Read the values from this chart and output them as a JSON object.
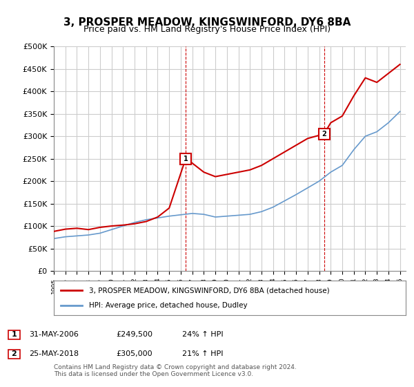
{
  "title": "3, PROSPER MEADOW, KINGSWINFORD, DY6 8BA",
  "subtitle": "Price paid vs. HM Land Registry's House Price Index (HPI)",
  "xlabel": "",
  "ylabel": "",
  "ylim": [
    0,
    500000
  ],
  "yticks": [
    0,
    50000,
    100000,
    150000,
    200000,
    250000,
    300000,
    350000,
    400000,
    450000,
    500000
  ],
  "ytick_labels": [
    "£0",
    "£50K",
    "£100K",
    "£150K",
    "£200K",
    "£250K",
    "£300K",
    "£350K",
    "£400K",
    "£450K",
    "£500K"
  ],
  "background_color": "#ffffff",
  "grid_color": "#cccccc",
  "red_color": "#cc0000",
  "blue_color": "#6699cc",
  "marker1_x": 2006.42,
  "marker1_y": 249500,
  "marker1_label": "1",
  "marker2_x": 2018.42,
  "marker2_y": 305000,
  "marker2_label": "2",
  "vline1_x": 2006.42,
  "vline2_x": 2018.42,
  "legend_entry1": "3, PROSPER MEADOW, KINGSWINFORD, DY6 8BA (detached house)",
  "legend_entry2": "HPI: Average price, detached house, Dudley",
  "table_row1": [
    "1",
    "31-MAY-2006",
    "£249,500",
    "24% ↑ HPI"
  ],
  "table_row2": [
    "2",
    "25-MAY-2018",
    "£305,000",
    "21% ↑ HPI"
  ],
  "footnote": "Contains HM Land Registry data © Crown copyright and database right 2024.\nThis data is licensed under the Open Government Licence v3.0.",
  "red_line": {
    "years": [
      1995,
      1996,
      1997,
      1998,
      1999,
      2000,
      2001,
      2002,
      2003,
      2004,
      2005,
      2006.42,
      2007,
      2008,
      2009,
      2010,
      2011,
      2012,
      2013,
      2014,
      2015,
      2016,
      2017,
      2018.42,
      2019,
      2020,
      2021,
      2022,
      2023,
      2024,
      2025
    ],
    "values": [
      88000,
      93000,
      95000,
      92000,
      97000,
      100000,
      102000,
      105000,
      110000,
      120000,
      140000,
      249500,
      240000,
      220000,
      210000,
      215000,
      220000,
      225000,
      235000,
      250000,
      265000,
      280000,
      295000,
      305000,
      330000,
      345000,
      390000,
      430000,
      420000,
      440000,
      460000
    ]
  },
  "blue_line": {
    "years": [
      1995,
      1996,
      1997,
      1998,
      1999,
      2000,
      2001,
      2002,
      2003,
      2004,
      2005,
      2006,
      2007,
      2008,
      2009,
      2010,
      2011,
      2012,
      2013,
      2014,
      2015,
      2016,
      2017,
      2018,
      2019,
      2020,
      2021,
      2022,
      2023,
      2024,
      2025
    ],
    "values": [
      72000,
      76000,
      78000,
      80000,
      84000,
      92000,
      100000,
      108000,
      114000,
      118000,
      122000,
      125000,
      128000,
      126000,
      120000,
      122000,
      124000,
      126000,
      132000,
      142000,
      156000,
      170000,
      185000,
      200000,
      220000,
      235000,
      270000,
      300000,
      310000,
      330000,
      355000
    ]
  },
  "xmin": 1995,
  "xmax": 2025.5
}
